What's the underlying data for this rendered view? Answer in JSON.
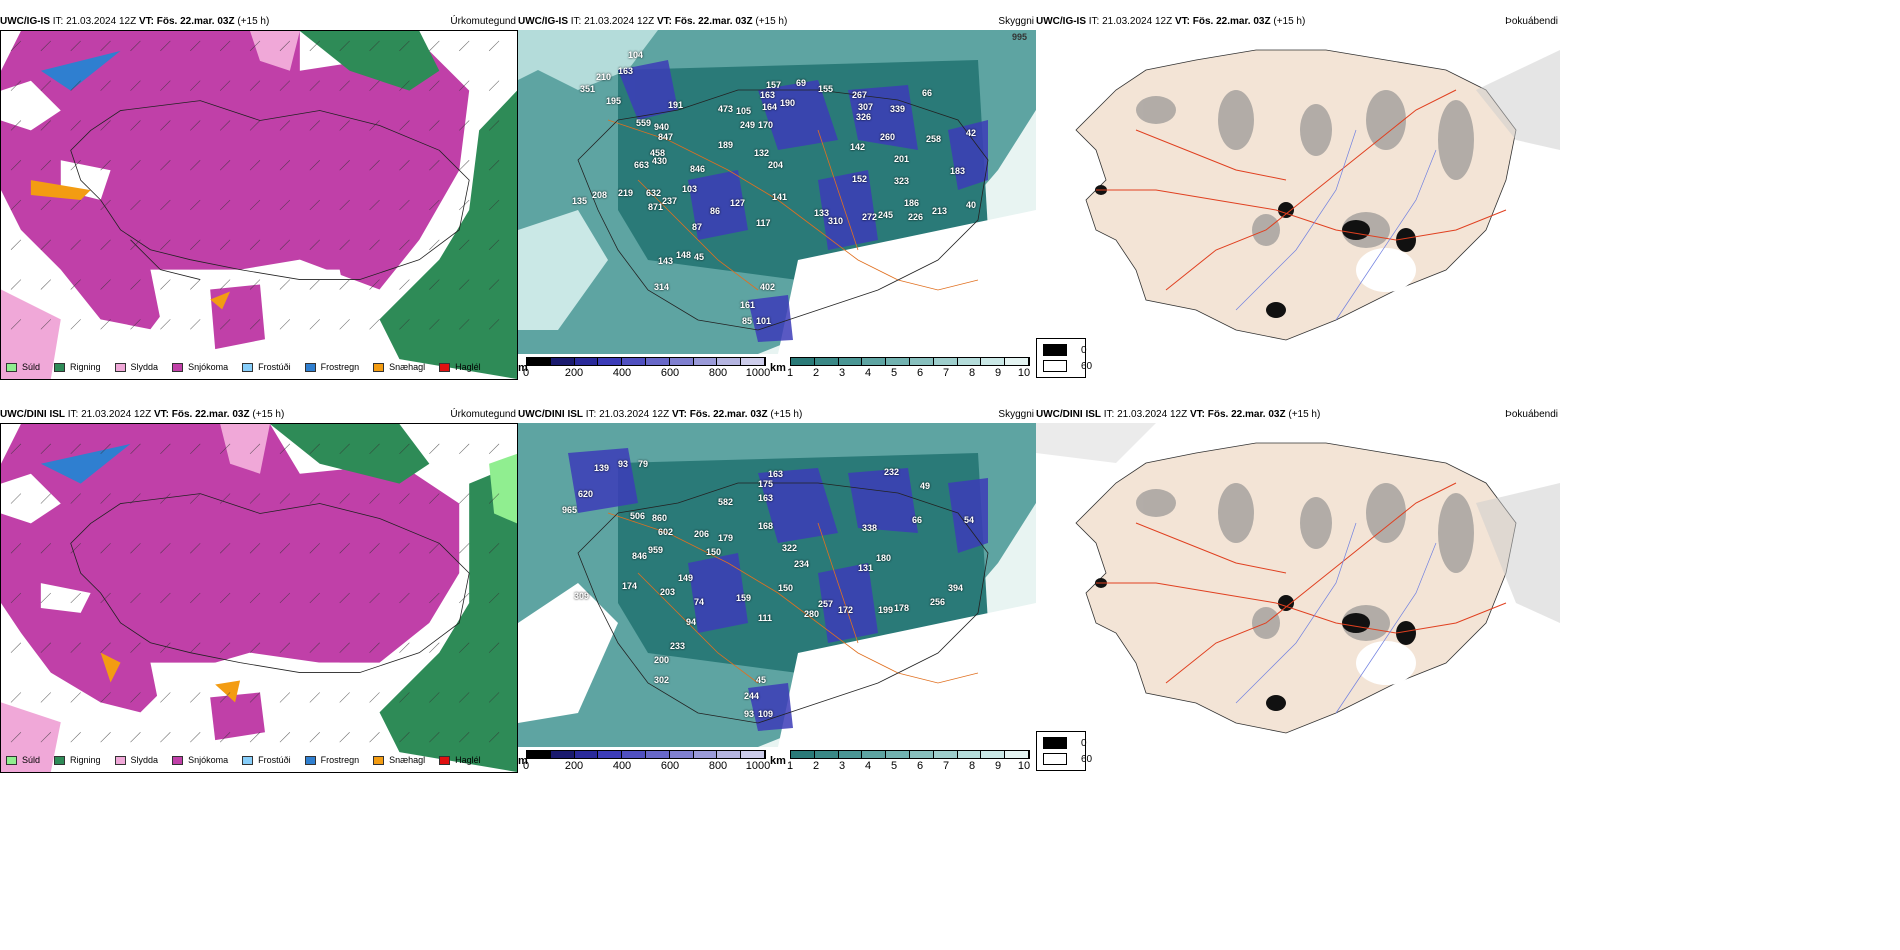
{
  "rows": [
    {
      "model": "UWC/IG-IS",
      "it_label": "IT:",
      "it_value": "21.03.2024 12Z",
      "vt_label": "VT:",
      "vt_value": "Fös. 22.mar. 03Z",
      "lead": "(+15 h)"
    },
    {
      "model": "UWC/DINI ISL",
      "it_label": "IT:",
      "it_value": "21.03.2024 12Z",
      "vt_label": "VT:",
      "vt_value": "Fös. 22.mar. 03Z",
      "lead": "(+15 h)"
    }
  ],
  "panels": {
    "precip_type": {
      "title": "Úrkomutegund",
      "legend": [
        {
          "label": "Súld",
          "color": "#90ee90"
        },
        {
          "label": "Rigning",
          "color": "#2e8b57"
        },
        {
          "label": "Slydda",
          "color": "#f0a8d8"
        },
        {
          "label": "Snjókoma",
          "color": "#c040a8"
        },
        {
          "label": "Frostúði",
          "color": "#87cefa"
        },
        {
          "label": "Frostregn",
          "color": "#2f7fd0"
        },
        {
          "label": "Snæhagl",
          "color": "#f39c12"
        },
        {
          "label": "Haglél",
          "color": "#e01010"
        }
      ]
    },
    "visibility": {
      "title": "Skyggni",
      "m_unit": "m",
      "m_ticks": [
        "0",
        "200",
        "400",
        "600",
        "800",
        "1000"
      ],
      "km_unit": "km",
      "km_ticks": [
        "1",
        "2",
        "3",
        "4",
        "5",
        "6",
        "7",
        "8",
        "9",
        "10"
      ],
      "m_colors": [
        "#000000",
        "#1a1a6e",
        "#2a2a9a",
        "#3c3cb8",
        "#5050c0",
        "#6868c8",
        "#8080d0",
        "#9a9ad8",
        "#b4b4e0",
        "#ccccea"
      ],
      "km_colors": [
        "#2a7a78",
        "#3a8886",
        "#4a9694",
        "#5ea4a2",
        "#72b2b0",
        "#88c0be",
        "#9ececc",
        "#b4dcda",
        "#cae8e6",
        "#e4f4f2"
      ],
      "top_labels": [
        "995",
        "104",
        "210",
        "163",
        "351",
        "195",
        "191",
        "559",
        "940",
        "847",
        "458",
        "430",
        "663",
        "846",
        "103",
        "208",
        "219",
        "632",
        "237",
        "871",
        "135",
        "86",
        "127",
        "87",
        "117",
        "148",
        "143",
        "45",
        "314",
        "402",
        "161",
        "85",
        "101",
        "473",
        "105",
        "249",
        "170",
        "189",
        "132",
        "204",
        "141",
        "157",
        "163",
        "164",
        "190",
        "69",
        "155",
        "267",
        "307",
        "326",
        "339",
        "66",
        "42",
        "258",
        "260",
        "142",
        "201",
        "323",
        "152",
        "133",
        "310",
        "272",
        "245",
        "186",
        "226",
        "183",
        "213",
        "40"
      ],
      "bottom_labels": [
        "139",
        "93",
        "79",
        "620",
        "965",
        "506",
        "860",
        "602",
        "959",
        "846",
        "174",
        "309",
        "203",
        "149",
        "74",
        "159",
        "94",
        "233",
        "200",
        "302",
        "244",
        "93",
        "109",
        "45",
        "111",
        "150",
        "582",
        "206",
        "179",
        "150",
        "175",
        "163",
        "168",
        "322",
        "234",
        "280",
        "257",
        "172",
        "199",
        "178",
        "338",
        "180",
        "131",
        "66",
        "49",
        "54",
        "394",
        "256",
        "232",
        "163"
      ],
      "top_corner_label": "995"
    },
    "fog": {
      "title": "Þokuábendi",
      "legend": [
        {
          "label": "0",
          "color": "#000000"
        },
        {
          "label": "60",
          "color": "#ffffff"
        }
      ]
    }
  }
}
